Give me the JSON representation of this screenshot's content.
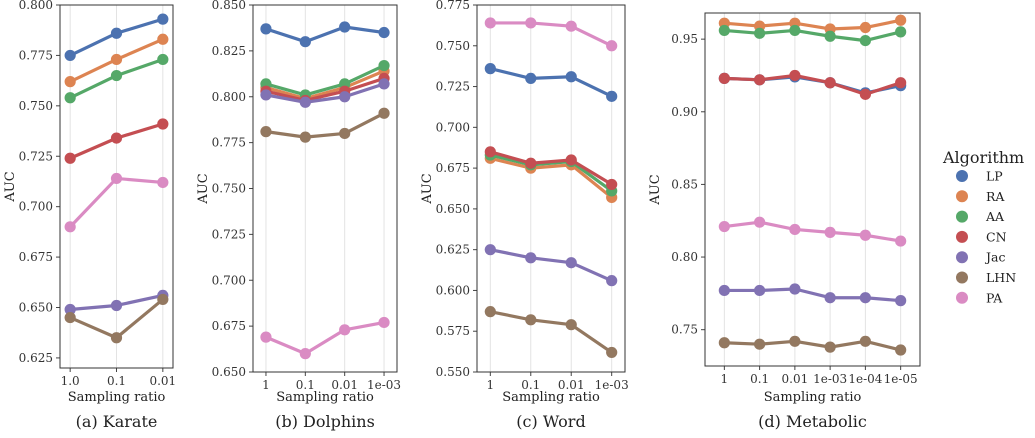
{
  "legend": {
    "title": "Algorithm",
    "entries": [
      {
        "name": "LP",
        "color": "#4C72B0"
      },
      {
        "name": "RA",
        "color": "#DD8452"
      },
      {
        "name": "AA",
        "color": "#55A868"
      },
      {
        "name": "CN",
        "color": "#C44E52"
      },
      {
        "name": "Jac",
        "color": "#8172B3"
      },
      {
        "name": "LHN",
        "color": "#937860"
      },
      {
        "name": "PA",
        "color": "#DA8BC3"
      }
    ]
  },
  "chart_data": [
    {
      "type": "line",
      "caption": "(a) Karate",
      "xlabel": "Sampling ratio",
      "ylabel": "AUC",
      "categories": [
        "1.0",
        "0.1",
        "0.01"
      ],
      "ylim": [
        0.62,
        0.8
      ],
      "yticks": [
        "0.625",
        "0.650",
        "0.675",
        "0.700",
        "0.725",
        "0.750",
        "0.775",
        "0.800"
      ],
      "series": [
        {
          "name": "LP",
          "values": [
            0.775,
            0.786,
            0.793
          ]
        },
        {
          "name": "RA",
          "values": [
            0.762,
            0.773,
            0.783
          ]
        },
        {
          "name": "AA",
          "values": [
            0.754,
            0.765,
            0.773
          ]
        },
        {
          "name": "CN",
          "values": [
            0.724,
            0.734,
            0.741
          ]
        },
        {
          "name": "Jac",
          "values": [
            0.649,
            0.651,
            0.656
          ]
        },
        {
          "name": "LHN",
          "values": [
            0.645,
            0.635,
            0.654
          ]
        },
        {
          "name": "PA",
          "values": [
            0.69,
            0.714,
            0.712
          ]
        }
      ]
    },
    {
      "type": "line",
      "caption": "(b) Dolphins",
      "xlabel": "Sampling ratio",
      "ylabel": "AUC",
      "categories": [
        "1",
        "0.1",
        "0.01",
        "1e-03"
      ],
      "ylim": [
        0.65,
        0.85
      ],
      "yticks": [
        "0.650",
        "0.675",
        "0.700",
        "0.725",
        "0.750",
        "0.775",
        "0.800",
        "0.825",
        "0.850"
      ],
      "series": [
        {
          "name": "LP",
          "values": [
            0.837,
            0.83,
            0.838,
            0.835
          ]
        },
        {
          "name": "RA",
          "values": [
            0.805,
            0.799,
            0.805,
            0.814
          ]
        },
        {
          "name": "AA",
          "values": [
            0.807,
            0.801,
            0.807,
            0.817
          ]
        },
        {
          "name": "CN",
          "values": [
            0.803,
            0.798,
            0.803,
            0.81
          ]
        },
        {
          "name": "Jac",
          "values": [
            0.801,
            0.797,
            0.8,
            0.807
          ]
        },
        {
          "name": "LHN",
          "values": [
            0.781,
            0.778,
            0.78,
            0.791
          ]
        },
        {
          "name": "PA",
          "values": [
            0.669,
            0.66,
            0.673,
            0.677
          ]
        }
      ]
    },
    {
      "type": "line",
      "caption": "(c) Word",
      "xlabel": "Sampling ratio",
      "ylabel": "AUC",
      "categories": [
        "1",
        "0.1",
        "0.01",
        "1e-03"
      ],
      "ylim": [
        0.55,
        0.775
      ],
      "yticks": [
        "0.550",
        "0.575",
        "0.600",
        "0.625",
        "0.650",
        "0.675",
        "0.700",
        "0.725",
        "0.750",
        "0.775"
      ],
      "series": [
        {
          "name": "LP",
          "values": [
            0.736,
            0.73,
            0.731,
            0.719
          ]
        },
        {
          "name": "RA",
          "values": [
            0.681,
            0.675,
            0.677,
            0.657
          ]
        },
        {
          "name": "AA",
          "values": [
            0.683,
            0.677,
            0.679,
            0.661
          ]
        },
        {
          "name": "CN",
          "values": [
            0.685,
            0.678,
            0.68,
            0.665
          ]
        },
        {
          "name": "Jac",
          "values": [
            0.625,
            0.62,
            0.617,
            0.606
          ]
        },
        {
          "name": "LHN",
          "values": [
            0.587,
            0.582,
            0.579,
            0.562
          ]
        },
        {
          "name": "PA",
          "values": [
            0.764,
            0.764,
            0.762,
            0.75
          ]
        }
      ]
    },
    {
      "type": "line",
      "caption": "(d) Metabolic",
      "xlabel": "Sampling ratio",
      "ylabel": "AUC",
      "categories": [
        "1",
        "0.1",
        "0.01",
        "1e-03",
        "1e-04",
        "1e-05"
      ],
      "ylim": [
        0.725,
        0.968
      ],
      "yticks": [
        "0.75",
        "0.80",
        "0.85",
        "0.90",
        "0.95"
      ],
      "series": [
        {
          "name": "LP",
          "values": [
            0.923,
            0.922,
            0.924,
            0.92,
            0.913,
            0.918
          ]
        },
        {
          "name": "RA",
          "values": [
            0.961,
            0.959,
            0.961,
            0.957,
            0.958,
            0.963
          ]
        },
        {
          "name": "AA",
          "values": [
            0.956,
            0.954,
            0.956,
            0.952,
            0.949,
            0.955
          ]
        },
        {
          "name": "CN",
          "values": [
            0.923,
            0.922,
            0.925,
            0.92,
            0.912,
            0.92
          ]
        },
        {
          "name": "Jac",
          "values": [
            0.777,
            0.777,
            0.778,
            0.772,
            0.772,
            0.77
          ]
        },
        {
          "name": "LHN",
          "values": [
            0.741,
            0.74,
            0.742,
            0.738,
            0.742,
            0.736
          ]
        },
        {
          "name": "PA",
          "values": [
            0.821,
            0.824,
            0.819,
            0.817,
            0.815,
            0.811
          ]
        }
      ]
    }
  ]
}
